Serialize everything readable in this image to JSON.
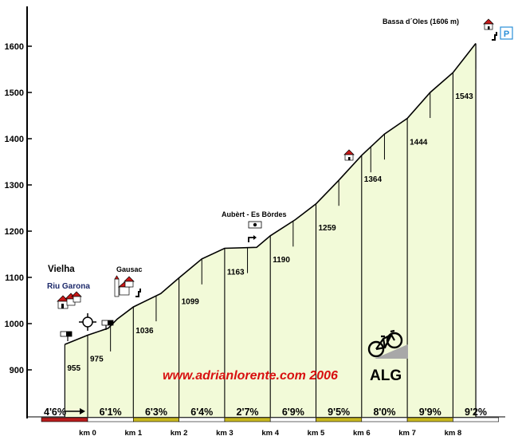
{
  "chart_data": {
    "type": "area",
    "title": "",
    "xlabel": "",
    "ylabel": "",
    "ylim": [
      800,
      1650
    ],
    "y_ticks": [
      900,
      1000,
      1100,
      1200,
      1300,
      1400,
      1500,
      1600
    ],
    "grid": false,
    "x_ticks": [
      "km 0",
      "km 1",
      "km 2",
      "km 3",
      "km 4",
      "km 5",
      "km 6",
      "km 7",
      "km 8"
    ],
    "profile": [
      {
        "km": -0.5,
        "elev": 955
      },
      {
        "km": 0.0,
        "elev": 975
      },
      {
        "km": 0.45,
        "elev": 990
      },
      {
        "km": 0.65,
        "elev": 1010
      },
      {
        "km": 1.0,
        "elev": 1036
      },
      {
        "km": 1.6,
        "elev": 1065
      },
      {
        "km": 2.0,
        "elev": 1099
      },
      {
        "km": 2.5,
        "elev": 1140
      },
      {
        "km": 3.0,
        "elev": 1163
      },
      {
        "km": 3.7,
        "elev": 1165
      },
      {
        "km": 4.0,
        "elev": 1190
      },
      {
        "km": 4.55,
        "elev": 1225
      },
      {
        "km": 5.0,
        "elev": 1259
      },
      {
        "km": 5.5,
        "elev": 1310
      },
      {
        "km": 6.0,
        "elev": 1364
      },
      {
        "km": 6.5,
        "elev": 1410
      },
      {
        "km": 7.0,
        "elev": 1444
      },
      {
        "km": 7.5,
        "elev": 1500
      },
      {
        "km": 8.0,
        "elev": 1543
      },
      {
        "km": 8.5,
        "elev": 1606
      }
    ],
    "elevation_labels": [
      {
        "km": -0.5,
        "value": "955"
      },
      {
        "km": 0.0,
        "value": "975"
      },
      {
        "km": 1.0,
        "value": "1036"
      },
      {
        "km": 2.0,
        "value": "1099"
      },
      {
        "km": 3.0,
        "value": "1163"
      },
      {
        "km": 4.0,
        "value": "1190"
      },
      {
        "km": 5.0,
        "value": "1259"
      },
      {
        "km": 6.0,
        "value": "1364"
      },
      {
        "km": 7.0,
        "value": "1444"
      },
      {
        "km": 8.0,
        "value": "1543"
      }
    ],
    "segment_grades": [
      {
        "from_km": -1.0,
        "to_km": 0.0,
        "grade": "4'6%",
        "color": "#b81c1c"
      },
      {
        "from_km": 0.0,
        "to_km": 1.0,
        "grade": "6'1%",
        "color": "#ffffff"
      },
      {
        "from_km": 1.0,
        "to_km": 2.0,
        "grade": "6'3%",
        "color": "#c8b820"
      },
      {
        "from_km": 2.0,
        "to_km": 3.0,
        "grade": "6'4%",
        "color": "#ffffff"
      },
      {
        "from_km": 3.0,
        "to_km": 4.0,
        "grade": "2'7%",
        "color": "#c8b820"
      },
      {
        "from_km": 4.0,
        "to_km": 5.0,
        "grade": "6'9%",
        "color": "#ffffff"
      },
      {
        "from_km": 5.0,
        "to_km": 6.0,
        "grade": "9'5%",
        "color": "#c8b820"
      },
      {
        "from_km": 6.0,
        "to_km": 7.0,
        "grade": "8'0%",
        "color": "#ffffff"
      },
      {
        "from_km": 7.0,
        "to_km": 8.0,
        "grade": "9'9%",
        "color": "#c8b820"
      },
      {
        "from_km": 8.0,
        "to_km": 9.0,
        "grade": "9'2%",
        "color": "#ffffff"
      }
    ],
    "half_km_markers": [
      0.5,
      1.5,
      2.5,
      3.5,
      4.5,
      5.5,
      6.2,
      6.5,
      7.5,
      8.5
    ],
    "annotations": {
      "summit": "Bassa d´Oles (1606 m)",
      "place_vielha": "Vielha",
      "river": "Riu Garona",
      "place_gausac": "Gausac",
      "place_aubert": "Aubèrt - Es Bòrdes",
      "watermark": "www.adrianlorente.com 2006",
      "brand": "ALG",
      "parking": "P"
    },
    "colors": {
      "fill": "#f2fad8",
      "outline": "#000000",
      "house_roof": "#c81818",
      "parking": "#2a8fd8",
      "watermark": "#d81010"
    },
    "icons": [
      "house-icon",
      "church-icon",
      "roundabout-icon",
      "traffic-sign-icon",
      "fountain-icon",
      "parking-icon",
      "bicycle-icon"
    ]
  }
}
